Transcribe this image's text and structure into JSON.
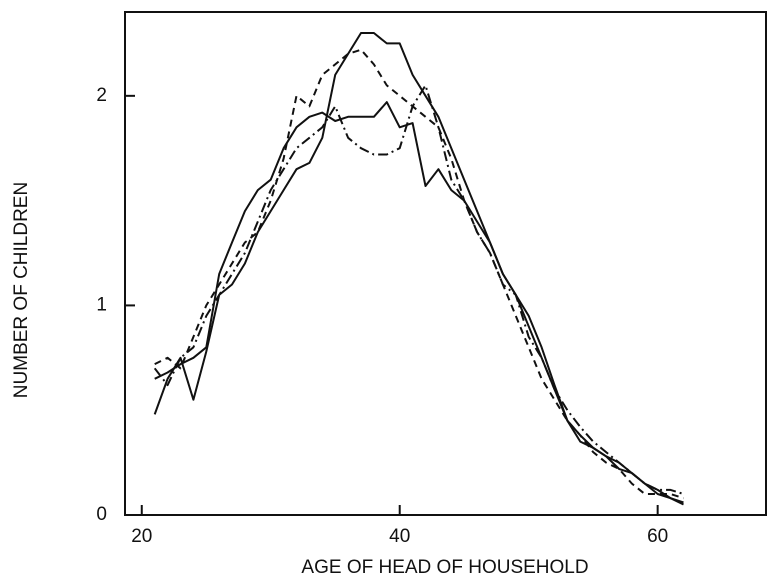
{
  "chart_data": {
    "type": "line",
    "x_label": "AGE OF HEAD OF HOUSEHOLD",
    "y_label": "NUMBER OF CHILDREN",
    "x": [
      21,
      22,
      23,
      24,
      25,
      26,
      27,
      28,
      29,
      30,
      31,
      32,
      33,
      34,
      35,
      36,
      37,
      38,
      39,
      40,
      41,
      42,
      43,
      44,
      45,
      46,
      47,
      48,
      49,
      50,
      51,
      52,
      53,
      54,
      55,
      56,
      57,
      58,
      59,
      60,
      61,
      62
    ],
    "series": [
      {
        "color": "#111111",
        "style": "solid",
        "values": [
          0.48,
          0.65,
          0.75,
          0.55,
          0.78,
          1.05,
          1.1,
          1.2,
          1.35,
          1.45,
          1.55,
          1.65,
          1.68,
          1.8,
          2.1,
          2.2,
          2.3,
          2.3,
          2.25,
          2.25,
          2.1,
          2.0,
          1.9,
          1.75,
          1.6,
          1.45,
          1.3,
          1.15,
          1.05,
          0.95,
          0.8,
          0.62,
          0.45,
          0.38,
          0.32,
          0.28,
          0.25,
          0.2,
          0.15,
          0.12,
          0.08,
          0.06
        ]
      },
      {
        "color": "#111111",
        "style": "solid",
        "values": [
          0.65,
          0.68,
          0.72,
          0.75,
          0.8,
          1.15,
          1.3,
          1.45,
          1.55,
          1.6,
          1.75,
          1.85,
          1.9,
          1.92,
          1.88,
          1.9,
          1.9,
          1.9,
          1.97,
          1.85,
          1.87,
          1.57,
          1.65,
          1.55,
          1.5,
          1.4,
          1.3,
          1.15,
          1.05,
          0.9,
          0.75,
          0.6,
          0.45,
          0.35,
          0.32,
          0.28,
          0.22,
          0.2,
          0.15,
          0.1,
          0.08,
          0.05
        ]
      },
      {
        "color": "#111111",
        "style": "dashed",
        "values": [
          0.72,
          0.75,
          0.7,
          0.85,
          1.0,
          1.1,
          1.2,
          1.3,
          1.35,
          1.5,
          1.7,
          2.0,
          1.95,
          2.1,
          2.15,
          2.2,
          2.22,
          2.15,
          2.05,
          2.0,
          1.95,
          1.9,
          1.85,
          1.7,
          1.5,
          1.35,
          1.25,
          1.1,
          0.95,
          0.8,
          0.65,
          0.55,
          0.45,
          0.38,
          0.3,
          0.25,
          0.22,
          0.15,
          0.1,
          0.1,
          0.1,
          0.08
        ]
      },
      {
        "color": "#111111",
        "style": "dashdot",
        "values": [
          0.7,
          0.62,
          0.75,
          0.8,
          0.95,
          1.05,
          1.15,
          1.25,
          1.4,
          1.55,
          1.65,
          1.75,
          1.8,
          1.85,
          1.95,
          1.8,
          1.75,
          1.72,
          1.72,
          1.75,
          1.95,
          2.05,
          1.85,
          1.6,
          1.5,
          1.35,
          1.25,
          1.1,
          1.05,
          0.85,
          0.75,
          0.6,
          0.5,
          0.42,
          0.35,
          0.3,
          0.25,
          0.2,
          0.15,
          0.12,
          0.12,
          0.1
        ]
      }
    ],
    "xlim": [
      18.7,
      68.4
    ],
    "xticks": [
      20,
      40,
      60
    ],
    "ylim": [
      0,
      2.4
    ],
    "yticks": [
      0,
      1,
      2
    ]
  }
}
